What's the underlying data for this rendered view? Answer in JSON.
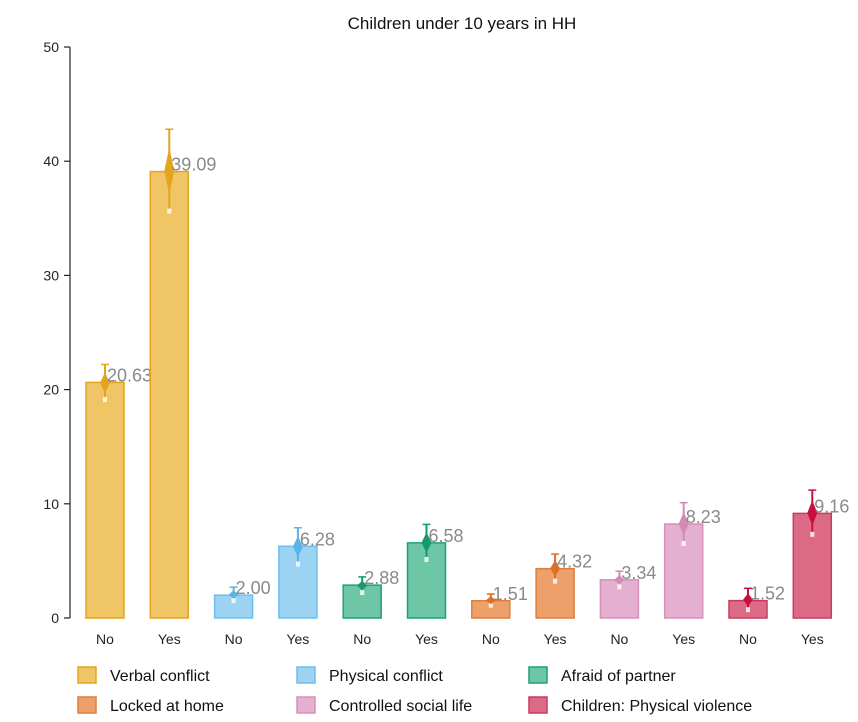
{
  "chart_data": {
    "type": "bar",
    "title": "Children under 10 years in HH",
    "ylabel": "",
    "xlabel": "",
    "ylim": [
      0,
      50
    ],
    "yticks": [
      0,
      10,
      20,
      30,
      40,
      50
    ],
    "grid": false,
    "legend_position": "bottom",
    "bars": [
      {
        "category": "No",
        "series": "Verbal conflict",
        "value": 20.63,
        "label": "20.63",
        "ci": [
          19.0,
          22.2
        ]
      },
      {
        "category": "Yes",
        "series": "Verbal conflict",
        "value": 39.09,
        "label": "39.09",
        "ci": [
          35.5,
          42.8
        ]
      },
      {
        "category": "No",
        "series": "Physical conflict",
        "value": 2.0,
        "label": "2.00",
        "ci": [
          1.4,
          2.7
        ]
      },
      {
        "category": "Yes",
        "series": "Physical conflict",
        "value": 6.28,
        "label": "6.28",
        "ci": [
          4.6,
          7.9
        ]
      },
      {
        "category": "No",
        "series": "Afraid of partner",
        "value": 2.88,
        "label": "2.88",
        "ci": [
          2.1,
          3.6
        ]
      },
      {
        "category": "Yes",
        "series": "Afraid of partner",
        "value": 6.58,
        "label": "6.58",
        "ci": [
          5.0,
          8.2
        ]
      },
      {
        "category": "No",
        "series": "Locked at home",
        "value": 1.51,
        "label": "1.51",
        "ci": [
          1.0,
          2.1
        ]
      },
      {
        "category": "Yes",
        "series": "Locked at home",
        "value": 4.32,
        "label": "4.32",
        "ci": [
          3.1,
          5.6
        ]
      },
      {
        "category": "No",
        "series": "Controlled social life",
        "value": 3.34,
        "label": "3.34",
        "ci": [
          2.6,
          4.1
        ]
      },
      {
        "category": "Yes",
        "series": "Controlled social life",
        "value": 8.23,
        "label": "8.23",
        "ci": [
          6.4,
          10.1
        ]
      },
      {
        "category": "No",
        "series": "Children: Physical violence",
        "value": 1.52,
        "label": "1.52",
        "ci": [
          0.6,
          2.6
        ]
      },
      {
        "category": "Yes",
        "series": "Children: Physical violence",
        "value": 9.16,
        "label": "9.16",
        "ci": [
          7.2,
          11.2
        ]
      }
    ],
    "series": [
      {
        "name": "Verbal conflict",
        "color": "#F0C566",
        "stroke": "#E3A51E",
        "ci_color": "#E3A51E"
      },
      {
        "name": "Physical conflict",
        "color": "#9CD3F2",
        "stroke": "#6CBFEA",
        "ci_color": "#5BB4E8"
      },
      {
        "name": "Afraid of partner",
        "color": "#6DC6A6",
        "stroke": "#1FA27A",
        "ci_color": "#159A70"
      },
      {
        "name": "Locked at home",
        "color": "#EDA06A",
        "stroke": "#DE7F3C",
        "ci_color": "#D9702A"
      },
      {
        "name": "Controlled social life",
        "color": "#E5B0CF",
        "stroke": "#D88FBA",
        "ci_color": "#D28AB7"
      },
      {
        "name": "Children: Physical violence",
        "color": "#DC6A86",
        "stroke": "#C73C5E",
        "ci_color": "#C8103E"
      }
    ]
  }
}
